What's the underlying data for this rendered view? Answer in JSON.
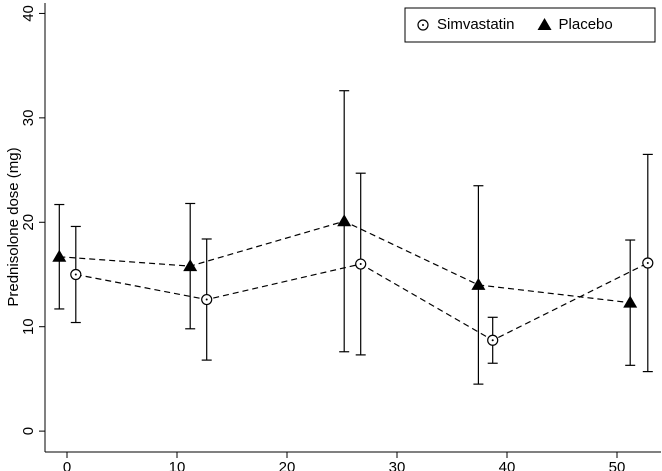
{
  "chart_data": {
    "type": "line",
    "y_label": "Prednisolone dose (mg)",
    "xlim": [
      -2,
      54
    ],
    "xticks": [
      0,
      10,
      20,
      30,
      40,
      50
    ],
    "ylim": [
      -2,
      41
    ],
    "yticks": [
      0,
      10,
      20,
      30,
      40
    ],
    "legend": "top-right",
    "series": [
      {
        "name": "Simvastatin",
        "color": "#000000",
        "marker": "circle",
        "x": [
          0.8,
          12.7,
          26.7,
          38.7,
          52.8
        ],
        "values": [
          15.0,
          12.6,
          16.0,
          8.7,
          16.1
        ],
        "errors": [
          4.6,
          5.8,
          8.7,
          2.2,
          10.4
        ]
      },
      {
        "name": "Placebo",
        "color": "#000000",
        "marker": "triangle",
        "x": [
          -0.7,
          11.2,
          25.2,
          37.4,
          51.2
        ],
        "values": [
          16.7,
          15.8,
          20.1,
          14.0,
          12.3
        ],
        "errors": [
          5.0,
          6.0,
          12.5,
          9.5,
          6.0
        ]
      }
    ]
  }
}
